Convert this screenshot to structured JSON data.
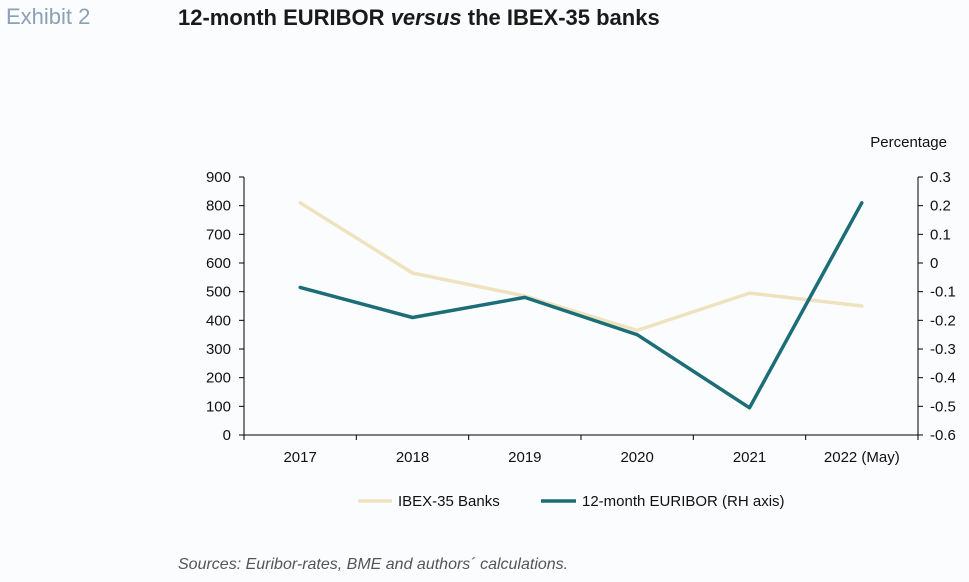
{
  "header": {
    "exhibit_label": "Exhibit 2",
    "title_part1": "12-month EURIBOR ",
    "title_italic": "versus",
    "title_part2": " the IBEX-35 banks"
  },
  "footer": {
    "source": "Sources: Euribor-rates, BME and authors´ calculations."
  },
  "chart_data": {
    "type": "line",
    "categories": [
      "2017",
      "2018",
      "2019",
      "2020",
      "2021",
      "2022 (May)"
    ],
    "y_left": {
      "ylim": [
        0,
        900
      ],
      "ticks": [
        "900",
        "800",
        "700",
        "600",
        "500",
        "400",
        "300",
        "200",
        "100",
        "0"
      ]
    },
    "y_right": {
      "label": "Percentage",
      "ylim": [
        -0.6,
        0.3
      ],
      "ticks": [
        "0.3",
        "0.2",
        "0.1",
        "0",
        "-0.1",
        "-0.2",
        "-0.3",
        "-0.4",
        "-0.5",
        "-0.6"
      ]
    },
    "series": [
      {
        "name": "IBEX-35 Banks",
        "axis": "left",
        "color": "#efe2bf",
        "values": [
          810,
          565,
          485,
          365,
          495,
          450
        ]
      },
      {
        "name": "12-month EURIBOR (RH axis)",
        "axis": "right",
        "color": "#1b6e77",
        "values": [
          -0.085,
          -0.19,
          -0.12,
          -0.25,
          -0.505,
          0.21
        ]
      }
    ],
    "legend_position": "bottom",
    "grid": false
  }
}
